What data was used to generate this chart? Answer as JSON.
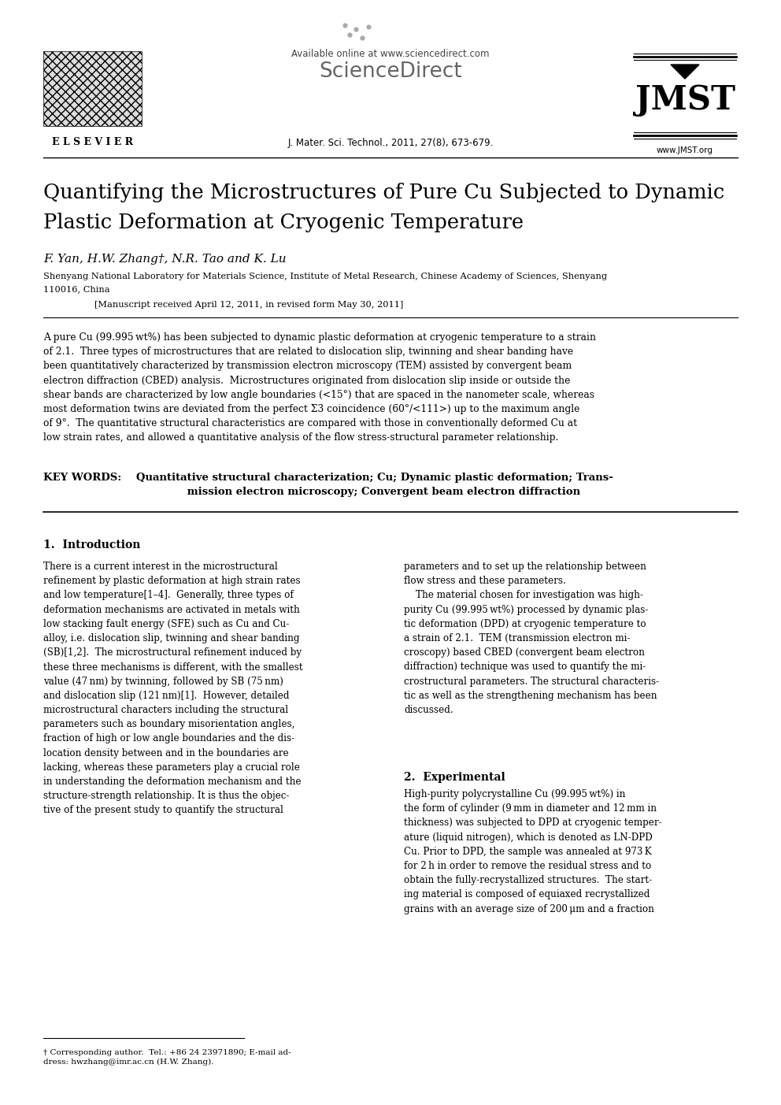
{
  "bg_color": "#ffffff",
  "title_line1": "Quantifying the Microstructures of Pure Cu Subjected to Dynamic",
  "title_line2": "Plastic Deformation at Cryogenic Temperature",
  "authors": "F. Yan, H.W. Zhang†, N.R. Tao and K. Lu",
  "affiliation_line1": "Shenyang National Laboratory for Materials Science, Institute of Metal Research, Chinese Academy of Sciences, Shenyang",
  "affiliation_line2": "110016, China",
  "manuscript_received": "[Manuscript received April 12, 2011, in revised form May 30, 2011]",
  "journal_info": "J. Mater. Sci. Technol., 2011, 27(8), 673-679.",
  "website": "www.JMST.org",
  "available_online": "Available online at www.sciencedirect.com",
  "keywords_label": "KEY WORDS:",
  "footnote": "† Corresponding author.  Tel.: +86 24 23971890; E-mail ad-\ndress: hwzhang@imr.ac.cn (H.W. Zhang).",
  "section1_heading": "1.  Introduction",
  "section2_heading": "2.  Experimental"
}
